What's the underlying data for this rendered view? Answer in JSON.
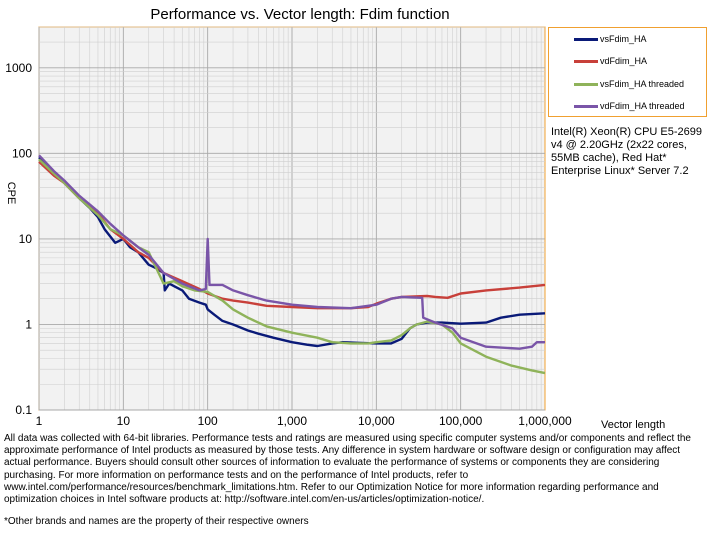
{
  "chart_data": {
    "type": "line",
    "title": "Performance vs. Vector length: Fdim function",
    "xlabel": "Vector length",
    "ylabel": "CPE",
    "x_scale": "log",
    "y_scale": "log",
    "xlim": [
      1,
      1000000
    ],
    "ylim": [
      0.1,
      3000
    ],
    "grid": true,
    "legend_position": "right",
    "x_tick_labels": [
      "1",
      "10",
      "100",
      "1,000",
      "10,000",
      "100,000",
      "1,000,000"
    ],
    "y_tick_labels": [
      "0.1",
      "1",
      "10",
      "100",
      "1000"
    ],
    "series": [
      {
        "name": "vsFdim_HA",
        "color": "#0a1a78",
        "points": [
          [
            1,
            90
          ],
          [
            1.5,
            60
          ],
          [
            2,
            45
          ],
          [
            3,
            30
          ],
          [
            4,
            23
          ],
          [
            5,
            18
          ],
          [
            6,
            13
          ],
          [
            8,
            9
          ],
          [
            10,
            10
          ],
          [
            12,
            8
          ],
          [
            15,
            7
          ],
          [
            20,
            5
          ],
          [
            25,
            4.5
          ],
          [
            30,
            4
          ],
          [
            31,
            2.5
          ],
          [
            35,
            3
          ],
          [
            40,
            2.8
          ],
          [
            50,
            2.5
          ],
          [
            60,
            2
          ],
          [
            80,
            1.8
          ],
          [
            95,
            1.7
          ],
          [
            100,
            1.5
          ],
          [
            120,
            1.3
          ],
          [
            150,
            1.1
          ],
          [
            200,
            1
          ],
          [
            300,
            0.85
          ],
          [
            400,
            0.78
          ],
          [
            600,
            0.7
          ],
          [
            1000,
            0.62
          ],
          [
            1500,
            0.58
          ],
          [
            2000,
            0.56
          ],
          [
            3000,
            0.6
          ],
          [
            4000,
            0.62
          ],
          [
            6000,
            0.61
          ],
          [
            10000,
            0.6
          ],
          [
            15000,
            0.6
          ],
          [
            20000,
            0.68
          ],
          [
            25000,
            0.9
          ],
          [
            30000,
            1
          ],
          [
            40000,
            1.05
          ],
          [
            60000,
            1.05
          ],
          [
            100000,
            1.02
          ],
          [
            200000,
            1.05
          ],
          [
            300000,
            1.2
          ],
          [
            500000,
            1.3
          ],
          [
            1000000,
            1.35
          ]
        ]
      },
      {
        "name": "vdFdim_HA",
        "color": "#c8403a",
        "points": [
          [
            1,
            80
          ],
          [
            1.5,
            55
          ],
          [
            2,
            45
          ],
          [
            3,
            30
          ],
          [
            5,
            20
          ],
          [
            7,
            13
          ],
          [
            10,
            10
          ],
          [
            15,
            7
          ],
          [
            20,
            6
          ],
          [
            30,
            4
          ],
          [
            50,
            3.2
          ],
          [
            80,
            2.6
          ],
          [
            100,
            2.3
          ],
          [
            150,
            2
          ],
          [
            200,
            1.9
          ],
          [
            300,
            1.8
          ],
          [
            500,
            1.65
          ],
          [
            1000,
            1.6
          ],
          [
            2000,
            1.55
          ],
          [
            5000,
            1.55
          ],
          [
            8000,
            1.6
          ],
          [
            10000,
            1.75
          ],
          [
            15000,
            2
          ],
          [
            20000,
            2.1
          ],
          [
            40000,
            2.15
          ],
          [
            50000,
            2.1
          ],
          [
            70000,
            2.05
          ],
          [
            100000,
            2.3
          ],
          [
            200000,
            2.5
          ],
          [
            500000,
            2.7
          ],
          [
            1000000,
            2.9
          ]
        ]
      },
      {
        "name": "vsFdim_HA threaded",
        "color": "#8fb35a",
        "points": [
          [
            1,
            85
          ],
          [
            1.5,
            58
          ],
          [
            2,
            45
          ],
          [
            3,
            30
          ],
          [
            5,
            19
          ],
          [
            7,
            13
          ],
          [
            10,
            11
          ],
          [
            15,
            8
          ],
          [
            20,
            7
          ],
          [
            30,
            3
          ],
          [
            40,
            3.2
          ],
          [
            50,
            2.8
          ],
          [
            70,
            2.5
          ],
          [
            100,
            2.4
          ],
          [
            150,
            1.9
          ],
          [
            200,
            1.5
          ],
          [
            300,
            1.2
          ],
          [
            500,
            0.95
          ],
          [
            1000,
            0.8
          ],
          [
            2000,
            0.7
          ],
          [
            3000,
            0.62
          ],
          [
            5000,
            0.6
          ],
          [
            8000,
            0.6
          ],
          [
            10000,
            0.62
          ],
          [
            15000,
            0.65
          ],
          [
            20000,
            0.75
          ],
          [
            25000,
            0.9
          ],
          [
            30000,
            1
          ],
          [
            40000,
            1.08
          ],
          [
            60000,
            1
          ],
          [
            80000,
            0.8
          ],
          [
            100000,
            0.6
          ],
          [
            200000,
            0.42
          ],
          [
            400000,
            0.33
          ],
          [
            700000,
            0.29
          ],
          [
            1000000,
            0.27
          ]
        ]
      },
      {
        "name": "vdFdim_HA threaded",
        "color": "#7a55a8",
        "points": [
          [
            1,
            95
          ],
          [
            1.5,
            62
          ],
          [
            2,
            48
          ],
          [
            3,
            32
          ],
          [
            5,
            21
          ],
          [
            7,
            15
          ],
          [
            10,
            11
          ],
          [
            15,
            8
          ],
          [
            20,
            6.5
          ],
          [
            30,
            4
          ],
          [
            50,
            3
          ],
          [
            80,
            2.5
          ],
          [
            95,
            2.6
          ],
          [
            100,
            10
          ],
          [
            105,
            2.9
          ],
          [
            150,
            2.9
          ],
          [
            200,
            2.5
          ],
          [
            300,
            2.2
          ],
          [
            500,
            1.9
          ],
          [
            1000,
            1.7
          ],
          [
            2000,
            1.6
          ],
          [
            5000,
            1.55
          ],
          [
            10000,
            1.7
          ],
          [
            15000,
            2
          ],
          [
            20000,
            2.1
          ],
          [
            35000,
            2.05
          ],
          [
            36000,
            1.2
          ],
          [
            50000,
            1.05
          ],
          [
            80000,
            0.9
          ],
          [
            100000,
            0.7
          ],
          [
            200000,
            0.55
          ],
          [
            500000,
            0.52
          ],
          [
            700000,
            0.55
          ],
          [
            800000,
            0.62
          ],
          [
            1000000,
            0.62
          ]
        ]
      }
    ]
  },
  "cpu_note": "Intel(R) Xeon(R) CPU E5-2699 v4 @ 2.20GHz (2x22 cores, 55MB cache), Red Hat* Enterprise Linux* Server 7.2",
  "disclaimer": "All data was collected with 64-bit libraries. Performance tests and ratings are measured using specific computer systems and/or components and reflect the approximate performance of Intel products as measured by those tests. Any difference in system hardware or software design or configuration may affect actual performance. Buyers should consult other sources of information to evaluate the performance of systems or components they are considering purchasing. For more information on performance tests and on the performance of Intel products, refer to www.intel.com/performance/resources/benchmark_limitations.htm. Refer to our Optimization Notice for more information regarding performance and optimization choices in Intel software products at: http://software.intel.com/en-us/articles/optimization-notice/.",
  "owners_note": "*Other brands and names are the property of their respective owners"
}
